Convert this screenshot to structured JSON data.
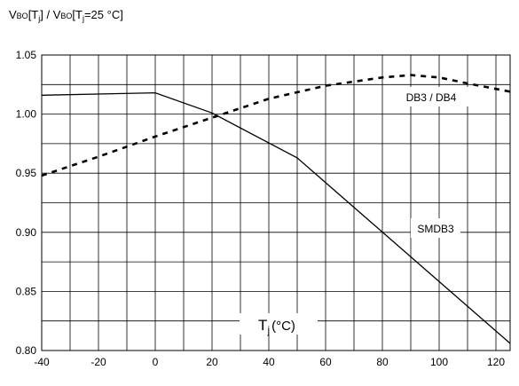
{
  "chart_data": {
    "type": "line",
    "ylabel_parts": {
      "v1": "V",
      "bo1": "BO",
      "open1": "[T",
      "j1": "j",
      "close1": "]",
      "sep": " / ",
      "v2": "V",
      "bo2": "BO",
      "open2": "[T",
      "j2": "j",
      "close2": "=25 °C]"
    },
    "xlabel_parts": {
      "t": "T",
      "j": "j",
      "unit": "(°C)"
    },
    "xlim": [
      -40,
      125
    ],
    "ylim": [
      0.8,
      1.05
    ],
    "x_ticks": [
      -40,
      -20,
      0,
      20,
      40,
      60,
      80,
      100,
      120
    ],
    "y_ticks": [
      "0.80",
      "0.85",
      "0.90",
      "0.95",
      "1.00",
      "1.05"
    ],
    "grid": true,
    "series": [
      {
        "name": "DB3 / DB4",
        "style": "dashed",
        "x": [
          -40,
          -20,
          0,
          20,
          40,
          60,
          80,
          90,
          100,
          110,
          125
        ],
        "y": [
          0.948,
          0.964,
          0.981,
          0.997,
          1.013,
          1.024,
          1.031,
          1.033,
          1.031,
          1.026,
          1.019
        ]
      },
      {
        "name": "SMDB3",
        "style": "solid",
        "x": [
          -40,
          0,
          20,
          50,
          125
        ],
        "y": [
          1.016,
          1.018,
          1.001,
          0.963,
          0.806
        ]
      }
    ]
  }
}
